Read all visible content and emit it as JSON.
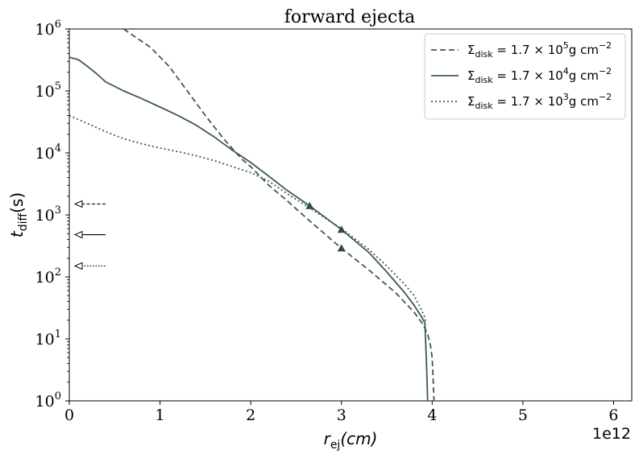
{
  "chart_data": {
    "type": "line",
    "title": "forward ejecta",
    "xlabel_main": "r",
    "xlabel_sub": "ej",
    "xlabel_unit": "(cm)",
    "ylabel_main": "t",
    "ylabel_sub": "diff",
    "ylabel_unit": "(s)",
    "x_offset_label": "1e12",
    "xlim": [
      0,
      6.2
    ],
    "ylim_log10": [
      0,
      6
    ],
    "y_scale": "log",
    "legend_position": "top-right",
    "xticks": [
      {
        "value": 0,
        "label": "0"
      },
      {
        "value": 1,
        "label": "1"
      },
      {
        "value": 2,
        "label": "2"
      },
      {
        "value": 3,
        "label": "3"
      },
      {
        "value": 4,
        "label": "4"
      },
      {
        "value": 5,
        "label": "5"
      },
      {
        "value": 6,
        "label": "6"
      }
    ],
    "yticks": [
      {
        "exp": 0,
        "base": "10",
        "power": "0"
      },
      {
        "exp": 1,
        "base": "10",
        "power": "1"
      },
      {
        "exp": 2,
        "base": "10",
        "power": "2"
      },
      {
        "exp": 3,
        "base": "10",
        "power": "3"
      },
      {
        "exp": 4,
        "base": "10",
        "power": "4"
      },
      {
        "exp": 5,
        "base": "10",
        "power": "5"
      },
      {
        "exp": 6,
        "base": "10",
        "power": "6"
      }
    ],
    "line_color": "#3d5a54",
    "series": [
      {
        "name": "Σdisk = 1.7 × 10^5 g cm^−2",
        "legend_sigma": "Σ",
        "legend_sub": "disk",
        "legend_mid": " = 1.7 × 10",
        "legend_exp": "5",
        "legend_unit": "g cm",
        "legend_unit_exp": "−2",
        "dash": "dashed",
        "x": [
          0.6,
          0.9,
          1.1,
          1.3,
          1.5,
          1.7,
          1.9,
          2.0,
          2.2,
          2.4,
          2.65,
          3.0,
          3.3,
          3.6,
          3.8,
          3.9,
          3.95,
          3.98,
          4.0,
          4.01,
          4.02
        ],
        "y": [
          1000000,
          500000,
          250000,
          100000,
          40000,
          17000,
          8000,
          6000,
          3000,
          1700,
          800,
          290,
          130,
          55,
          27,
          17,
          12,
          8,
          5,
          2.5,
          1
        ],
        "arrow_y": 1500,
        "marker": {
          "x": 3.0,
          "y": 290
        }
      },
      {
        "name": "Σdisk = 1.7 × 10^4 g cm^−2",
        "legend_sigma": "Σ",
        "legend_sub": "disk",
        "legend_mid": " = 1.7 × 10",
        "legend_exp": "4",
        "legend_unit": "g cm",
        "legend_unit_exp": "−2",
        "dash": "solid",
        "x": [
          0.0,
          0.1,
          0.2,
          0.3,
          0.4,
          0.6,
          0.8,
          1.0,
          1.2,
          1.4,
          1.6,
          1.8,
          2.0,
          2.2,
          2.4,
          2.65,
          3.0,
          3.3,
          3.5,
          3.7,
          3.8,
          3.88,
          3.92,
          3.93,
          3.94,
          3.95
        ],
        "y": [
          350000,
          320000,
          250000,
          190000,
          140000,
          100000,
          75000,
          55000,
          40000,
          28000,
          18000,
          11000,
          7000,
          4200,
          2500,
          1400,
          580,
          250,
          120,
          55,
          35,
          23,
          18,
          8,
          3,
          1
        ],
        "arrow_y": 480,
        "marker": {
          "x": 2.65,
          "y": 1400
        },
        "marker2": {
          "x": 3.0,
          "y": 580
        }
      },
      {
        "name": "Σdisk = 1.7 × 10^3 g cm^−2",
        "legend_sigma": "Σ",
        "legend_sub": "disk",
        "legend_mid": " = 1.7 × 10",
        "legend_exp": "3",
        "legend_unit": "g cm",
        "legend_unit_exp": "−2",
        "dash": "dotted",
        "x": [
          0.0,
          0.2,
          0.4,
          0.6,
          0.8,
          1.0,
          1.2,
          1.4,
          1.6,
          1.8,
          2.0,
          2.2,
          2.4,
          2.65,
          3.0,
          3.3,
          3.5,
          3.7,
          3.8,
          3.88,
          3.92,
          3.93
        ],
        "y": [
          40000,
          30000,
          22000,
          17000,
          14000,
          12000,
          10500,
          9000,
          7500,
          6000,
          4800,
          3500,
          2200,
          1300,
          600,
          280,
          150,
          75,
          50,
          30,
          22,
          18
        ],
        "arrow_y": 150
      }
    ]
  }
}
